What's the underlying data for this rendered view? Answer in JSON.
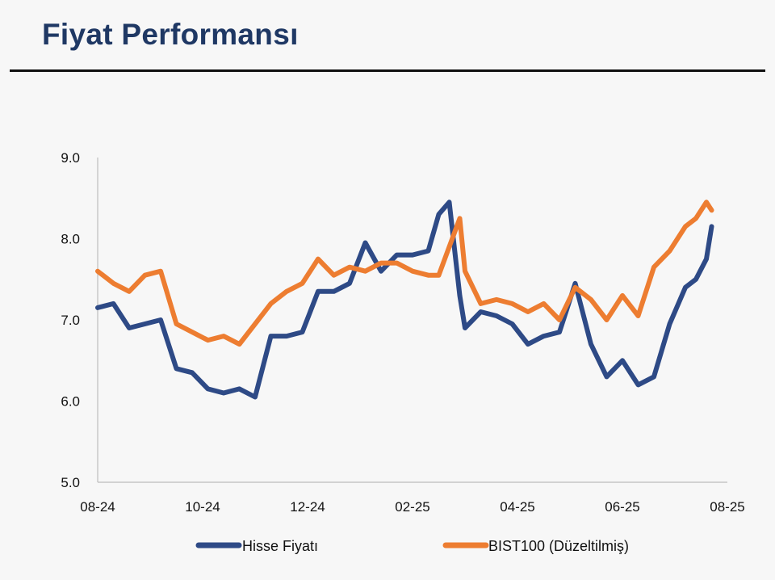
{
  "page": {
    "title": "Fiyat Performansı"
  },
  "chart_data": {
    "type": "line",
    "ylim": [
      5.0,
      9.0
    ],
    "yticks": [
      "5.0",
      "6.0",
      "7.0",
      "8.0",
      "9.0"
    ],
    "xticks": [
      "08-24",
      "10-24",
      "12-24",
      "02-25",
      "04-25",
      "06-25",
      "08-25"
    ],
    "xlim": [
      0,
      12
    ],
    "grid": false,
    "legend_position": "bottom",
    "series": [
      {
        "name": "Hisse Fiyatı",
        "color": "#2e4a86",
        "x": [
          0.0,
          0.3,
          0.6,
          0.9,
          1.2,
          1.5,
          1.8,
          2.1,
          2.4,
          2.7,
          3.0,
          3.3,
          3.6,
          3.9,
          4.2,
          4.5,
          4.8,
          5.1,
          5.4,
          5.7,
          6.0,
          6.3,
          6.5,
          6.7,
          6.9,
          7.0,
          7.3,
          7.6,
          7.9,
          8.2,
          8.5,
          8.8,
          9.1,
          9.4,
          9.7,
          10.0,
          10.3,
          10.6,
          10.9,
          11.2,
          11.4,
          11.6,
          11.7
        ],
        "values": [
          7.15,
          7.2,
          6.9,
          6.95,
          7.0,
          6.4,
          6.35,
          6.15,
          6.1,
          6.15,
          6.05,
          6.8,
          6.8,
          6.85,
          7.35,
          7.35,
          7.45,
          7.95,
          7.6,
          7.8,
          7.8,
          7.85,
          8.3,
          8.45,
          7.3,
          6.9,
          7.1,
          7.05,
          6.95,
          6.7,
          6.8,
          6.85,
          7.45,
          6.7,
          6.3,
          6.5,
          6.2,
          6.3,
          6.95,
          7.4,
          7.5,
          7.75,
          8.15
        ]
      },
      {
        "name": "BIST100 (Düzeltilmiş)",
        "color": "#ed7d31",
        "x": [
          0.0,
          0.3,
          0.6,
          0.9,
          1.2,
          1.5,
          1.8,
          2.1,
          2.4,
          2.7,
          3.0,
          3.3,
          3.6,
          3.9,
          4.2,
          4.5,
          4.8,
          5.1,
          5.4,
          5.7,
          6.0,
          6.3,
          6.5,
          6.7,
          6.9,
          7.0,
          7.3,
          7.6,
          7.9,
          8.2,
          8.5,
          8.8,
          9.1,
          9.4,
          9.7,
          10.0,
          10.3,
          10.6,
          10.9,
          11.2,
          11.4,
          11.6,
          11.7
        ],
        "values": [
          7.6,
          7.45,
          7.35,
          7.55,
          7.6,
          6.95,
          6.85,
          6.75,
          6.8,
          6.7,
          6.95,
          7.2,
          7.35,
          7.45,
          7.75,
          7.55,
          7.65,
          7.6,
          7.7,
          7.7,
          7.6,
          7.55,
          7.55,
          7.9,
          8.25,
          7.6,
          7.2,
          7.25,
          7.2,
          7.1,
          7.2,
          7.0,
          7.4,
          7.25,
          7.0,
          7.3,
          7.05,
          7.65,
          7.85,
          8.15,
          8.25,
          8.45,
          8.35
        ]
      }
    ]
  }
}
